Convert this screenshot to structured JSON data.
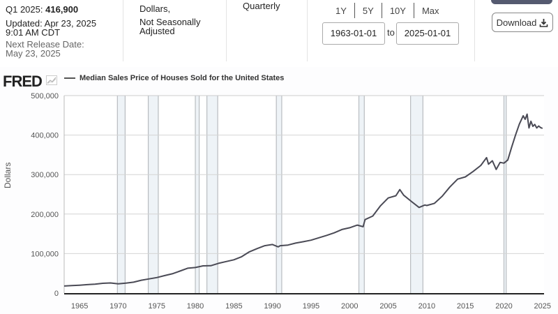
{
  "header": {
    "latest_label": "Q1 2025:",
    "latest_value": "416,900",
    "updated_label": "Updated: Apr 23, 2025",
    "updated_time": "9:01 AM CDT",
    "next_release_label": "Next Release Date:",
    "next_release_date": "May 23, 2025",
    "units_line1": "Dollars,",
    "units_line2": "Not Seasonally",
    "units_line3": "Adjusted",
    "frequency": "Quarterly",
    "range_buttons": [
      "1Y",
      "5Y",
      "10Y",
      "Max"
    ],
    "date_from": "1963-01-01",
    "date_to": "2025-01-01",
    "to_label": "to",
    "download_label": "Download",
    "download_icon": "download-icon"
  },
  "chart": {
    "logo_text": "FRED",
    "logo_icon": "chart-line-icon"
  },
  "chart_data": {
    "type": "line",
    "title": "Median Sales Price of Houses Sold for the United States",
    "xlabel": "",
    "ylabel": "Dollars",
    "xlim": [
      1963,
      2025.2
    ],
    "ylim": [
      0,
      500000
    ],
    "grid": true,
    "legend_position": "top-left",
    "x_ticks": [
      "1965",
      "1970",
      "1975",
      "1980",
      "1985",
      "1990",
      "1995",
      "2000",
      "2005",
      "2010",
      "2015",
      "2020",
      "2025"
    ],
    "y_ticks": [
      "0",
      "100,000",
      "200,000",
      "300,000",
      "400,000",
      "500,000"
    ],
    "line_color": "#4a4a55",
    "recessions": [
      [
        1969.9,
        1970.9
      ],
      [
        1973.9,
        1975.2
      ],
      [
        1980.0,
        1980.5
      ],
      [
        1981.5,
        1982.9
      ],
      [
        1990.5,
        1991.2
      ],
      [
        2001.2,
        2001.9
      ],
      [
        2007.9,
        2009.5
      ],
      [
        2020.0,
        2020.3
      ]
    ],
    "series": [
      {
        "name": "Median Sales Price of Houses Sold for the United States",
        "x": [
          1963,
          1964,
          1965,
          1966,
          1967,
          1968,
          1969,
          1970,
          1971,
          1972,
          1973,
          1974,
          1975,
          1976,
          1977,
          1978,
          1979,
          1980,
          1981,
          1982,
          1983,
          1984,
          1985,
          1986,
          1987,
          1988,
          1989,
          1990,
          1990.75,
          1991,
          1992,
          1993,
          1994,
          1995,
          1996,
          1997,
          1998,
          1999,
          2000,
          2001,
          2001.75,
          2002,
          2003,
          2004,
          2005,
          2006,
          2006.5,
          2007,
          2008,
          2009,
          2009.75,
          2010,
          2011,
          2012,
          2013,
          2014,
          2015,
          2016,
          2017,
          2017.75,
          2018,
          2018.5,
          2019,
          2019.5,
          2020,
          2020.5,
          2021,
          2021.5,
          2022,
          2022.5,
          2022.75,
          2023,
          2023.25,
          2023.5,
          2023.75,
          2024,
          2024.25,
          2024.5,
          2024.75,
          2025
        ],
        "values": [
          17800,
          18900,
          20000,
          21400,
          22700,
          24700,
          25600,
          23400,
          25200,
          27600,
          32500,
          35900,
          39300,
          44200,
          48800,
          55700,
          62900,
          64600,
          68900,
          69300,
          75300,
          79900,
          84300,
          92000,
          104500,
          112500,
          120000,
          122900,
          117000,
          120000,
          121500,
          126500,
          130000,
          133900,
          140000,
          146000,
          152500,
          161000,
          165300,
          172000,
          168000,
          186000,
          195000,
          221000,
          240900,
          246500,
          262000,
          247900,
          232100,
          216700,
          223000,
          221800,
          227200,
          245200,
          268900,
          288500,
          294200,
          307800,
          323100,
          343000,
          326400,
          335000,
          313000,
          331000,
          329000,
          337000,
          369000,
          400000,
          428000,
          449000,
          440000,
          453000,
          418000,
          435000,
          422000,
          427000,
          418000,
          423000,
          419000,
          416900
        ]
      }
    ]
  }
}
